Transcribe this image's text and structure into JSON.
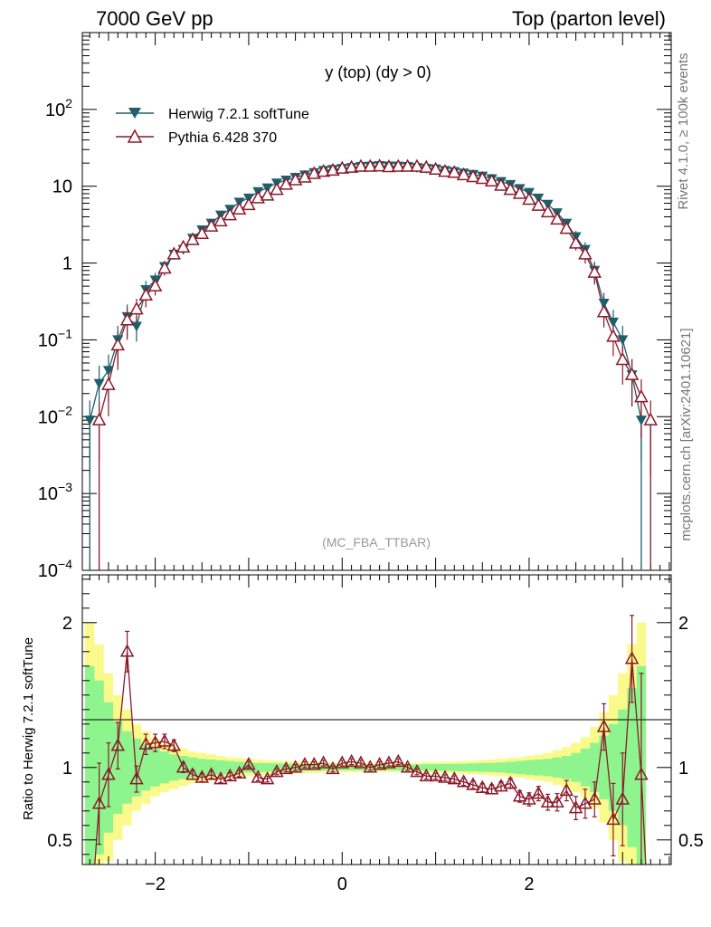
{
  "header": {
    "left": "7000 GeV pp",
    "right": "Top (parton level)"
  },
  "plot_title": "y (top) (dy > 0)",
  "watermark": "(MC_FBA_TTBAR)",
  "side_text": {
    "rivet": "Rivet 4.1.0, ≥ 100k events",
    "mcplots": "mcplots.cern.ch [arXiv:2401.10621]"
  },
  "colors": {
    "herwig": "#1f5f6b",
    "pythia": "#8b1a2b",
    "band_green": "#8ef58e",
    "band_yellow": "#fafa8c"
  },
  "chart_data": {
    "type": "line",
    "x_range": [
      -2.78,
      3.52
    ],
    "x_ticks": [
      -2,
      0,
      2
    ],
    "x_tick_labels": [
      "−2",
      "0",
      "2"
    ],
    "main": {
      "yscale": "log",
      "ylim": [
        0.0001,
        1000
      ],
      "y_tick_labels": [
        {
          "v": 100,
          "mant": "10",
          "exp": "2"
        },
        {
          "v": 10,
          "mant": "10",
          "exp": ""
        },
        {
          "v": 1,
          "mant": "1",
          "exp": ""
        },
        {
          "v": 0.1,
          "mant": "10",
          "exp": "−1"
        },
        {
          "v": 0.01,
          "mant": "10",
          "exp": "−2"
        },
        {
          "v": 0.001,
          "mant": "10",
          "exp": "−3"
        },
        {
          "v": 0.0001,
          "mant": "10",
          "exp": "−4"
        }
      ],
      "series": [
        {
          "name": "Herwig 7.2.1 softTune",
          "marker": "triangle-down-filled",
          "x": [
            -2.7,
            -2.6,
            -2.5,
            -2.4,
            -2.3,
            -2.2,
            -2.1,
            -2.0,
            -1.9,
            -1.8,
            -1.7,
            -1.6,
            -1.5,
            -1.4,
            -1.3,
            -1.2,
            -1.1,
            -1.0,
            -0.9,
            -0.8,
            -0.7,
            -0.6,
            -0.5,
            -0.4,
            -0.3,
            -0.2,
            -0.1,
            0.0,
            0.1,
            0.2,
            0.3,
            0.4,
            0.5,
            0.6,
            0.7,
            0.8,
            0.9,
            1.0,
            1.1,
            1.2,
            1.3,
            1.4,
            1.5,
            1.6,
            1.7,
            1.8,
            1.9,
            2.0,
            2.1,
            2.2,
            2.3,
            2.4,
            2.5,
            2.6,
            2.7,
            2.8,
            2.9,
            3.0,
            3.1,
            3.2
          ],
          "y": [
            0.009,
            0.027,
            0.04,
            0.1,
            0.2,
            0.15,
            0.45,
            0.6,
            0.9,
            1.3,
            1.5,
            2.1,
            2.7,
            3.3,
            4.2,
            5.0,
            6.2,
            7.0,
            8.5,
            9.5,
            11,
            12,
            13,
            14,
            15,
            16,
            16.5,
            17,
            17.5,
            18,
            18.2,
            18.5,
            18.3,
            18.2,
            18,
            17.5,
            17,
            16.8,
            16,
            15.5,
            14.8,
            14.2,
            13.5,
            12.5,
            11.5,
            10.5,
            9.3,
            8.3,
            7.0,
            5.8,
            4.5,
            3.3,
            2.2,
            1.5,
            0.8,
            0.3,
            0.17,
            0.1,
            0.035,
            0.009
          ]
        },
        {
          "name": "Pythia 6.428 370",
          "marker": "triangle-up-open",
          "x": [
            -2.6,
            -2.5,
            -2.4,
            -2.3,
            -2.2,
            -2.1,
            -2.0,
            -1.9,
            -1.8,
            -1.7,
            -1.6,
            -1.5,
            -1.4,
            -1.3,
            -1.2,
            -1.1,
            -1.0,
            -0.9,
            -0.8,
            -0.7,
            -0.6,
            -0.5,
            -0.4,
            -0.3,
            -0.2,
            -0.1,
            0.0,
            0.1,
            0.2,
            0.3,
            0.4,
            0.5,
            0.6,
            0.7,
            0.8,
            0.9,
            1.0,
            1.1,
            1.2,
            1.3,
            1.4,
            1.5,
            1.6,
            1.7,
            1.8,
            1.9,
            2.0,
            2.1,
            2.2,
            2.3,
            2.4,
            2.5,
            2.6,
            2.7,
            2.8,
            2.9,
            3.0,
            3.1,
            3.2,
            3.3
          ],
          "y": [
            0.009,
            0.026,
            0.085,
            0.18,
            0.25,
            0.38,
            0.5,
            0.85,
            1.3,
            1.6,
            2.0,
            2.4,
            3.0,
            3.5,
            4.2,
            5.0,
            5.7,
            7.0,
            7.6,
            9.0,
            10.5,
            12,
            13,
            14.5,
            15.5,
            16,
            17,
            17.5,
            18,
            18,
            18.2,
            17.8,
            18,
            18,
            18,
            17.5,
            16.5,
            15.5,
            15,
            14,
            13.2,
            12.5,
            11.6,
            10.2,
            9.0,
            8.0,
            6.7,
            5.6,
            4.6,
            3.7,
            2.8,
            1.8,
            1.3,
            0.75,
            0.23,
            0.11,
            0.055,
            0.035,
            0.018,
            0.009
          ]
        }
      ]
    },
    "ratio": {
      "ylabel": "Ratio to Herwig 7.2.1 softTune",
      "ylim": [
        0.33,
        2.33
      ],
      "y_ticks": [
        0.5,
        1,
        2
      ],
      "y_tick_labels": [
        "0.5",
        "1",
        "2"
      ],
      "reference": 1,
      "band_green_halfwidth": [
        0.7,
        0.6,
        0.45,
        0.32,
        0.25,
        0.2,
        0.16,
        0.13,
        0.11,
        0.09,
        0.08,
        0.07,
        0.06,
        0.055,
        0.05,
        0.045,
        0.04,
        0.035,
        0.032,
        0.03,
        0.028,
        0.026,
        0.025,
        0.024,
        0.023,
        0.022,
        0.021,
        0.02,
        0.02,
        0.02,
        0.02,
        0.02,
        0.02,
        0.02,
        0.02,
        0.021,
        0.022,
        0.023,
        0.024,
        0.025,
        0.026,
        0.028,
        0.03,
        0.032,
        0.035,
        0.04,
        0.045,
        0.05,
        0.055,
        0.06,
        0.07,
        0.08,
        0.1,
        0.13,
        0.17,
        0.22,
        0.3,
        0.4,
        0.55,
        0.7
      ],
      "band_yellow_halfwidth": [
        1.0,
        0.85,
        0.65,
        0.5,
        0.4,
        0.3,
        0.25,
        0.2,
        0.17,
        0.15,
        0.13,
        0.11,
        0.1,
        0.09,
        0.08,
        0.07,
        0.065,
        0.06,
        0.055,
        0.05,
        0.047,
        0.044,
        0.042,
        0.04,
        0.038,
        0.036,
        0.034,
        0.033,
        0.032,
        0.032,
        0.032,
        0.032,
        0.032,
        0.032,
        0.033,
        0.034,
        0.036,
        0.038,
        0.04,
        0.042,
        0.044,
        0.047,
        0.05,
        0.055,
        0.06,
        0.065,
        0.07,
        0.08,
        0.09,
        0.1,
        0.12,
        0.14,
        0.17,
        0.21,
        0.28,
        0.38,
        0.5,
        0.65,
        0.85,
        1.0
      ],
      "pythia_ratio": {
        "x": [
          -2.6,
          -2.5,
          -2.4,
          -2.3,
          -2.2,
          -2.1,
          -2.0,
          -1.9,
          -1.8,
          -1.7,
          -1.6,
          -1.5,
          -1.4,
          -1.3,
          -1.2,
          -1.1,
          -1.0,
          -0.9,
          -0.8,
          -0.7,
          -0.6,
          -0.5,
          -0.4,
          -0.3,
          -0.2,
          -0.1,
          0.0,
          0.1,
          0.2,
          0.3,
          0.4,
          0.5,
          0.6,
          0.7,
          0.8,
          0.9,
          1.0,
          1.1,
          1.2,
          1.3,
          1.4,
          1.5,
          1.6,
          1.7,
          1.8,
          1.9,
          2.0,
          2.1,
          2.2,
          2.3,
          2.4,
          2.5,
          2.6,
          2.7,
          2.8,
          2.9,
          3.0,
          3.1,
          3.2
        ],
        "y": [
          0.75,
          0.95,
          1.15,
          1.8,
          0.92,
          1.16,
          1.17,
          1.18,
          1.15,
          1.0,
          0.95,
          0.93,
          0.95,
          0.92,
          0.94,
          0.96,
          1.02,
          0.93,
          0.92,
          0.97,
          0.99,
          1.0,
          1.02,
          1.02,
          1.03,
          0.99,
          1.03,
          1.04,
          1.03,
          1.0,
          1.02,
          1.03,
          1.04,
          1.0,
          0.97,
          0.94,
          0.94,
          0.93,
          0.92,
          0.9,
          0.88,
          0.86,
          0.85,
          0.87,
          0.89,
          0.8,
          0.78,
          0.82,
          0.76,
          0.76,
          0.84,
          0.72,
          0.75,
          0.78,
          1.28,
          0.64,
          0.78,
          1.75,
          0.95
        ],
        "err": [
          0.28,
          0.22,
          0.16,
          0.14,
          0.09,
          0.07,
          0.06,
          0.05,
          0.04,
          0.035,
          0.03,
          0.028,
          0.026,
          0.025,
          0.024,
          0.023,
          0.022,
          0.021,
          0.02,
          0.02,
          0.02,
          0.02,
          0.02,
          0.02,
          0.02,
          0.02,
          0.02,
          0.02,
          0.02,
          0.02,
          0.02,
          0.02,
          0.02,
          0.02,
          0.02,
          0.02,
          0.02,
          0.02,
          0.022,
          0.024,
          0.026,
          0.028,
          0.03,
          0.032,
          0.035,
          0.04,
          0.045,
          0.05,
          0.055,
          0.06,
          0.07,
          0.08,
          0.1,
          0.12,
          0.16,
          0.25,
          0.32,
          0.3,
          0.7
        ]
      }
    }
  }
}
